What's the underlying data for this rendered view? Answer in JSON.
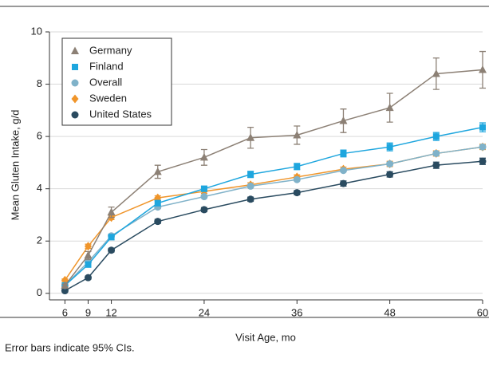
{
  "chart_data": {
    "type": "line",
    "x_label": "Visit Age, mo",
    "y_label": "Mean Gluten Intake, g/d",
    "note": "Error bars indicate 95% CIs.",
    "x": [
      6,
      9,
      12,
      18,
      24,
      30,
      36,
      42,
      48,
      54,
      60
    ],
    "xlim": [
      4,
      60
    ],
    "xticks": [
      6,
      9,
      12,
      24,
      36,
      48,
      60
    ],
    "ylim": [
      -0.25,
      10
    ],
    "yticks": [
      0,
      2,
      4,
      6,
      8,
      10
    ],
    "grid": true,
    "legend": "upper left",
    "series": [
      {
        "name": "Germany",
        "color": "#8c8075",
        "marker": "triangle",
        "values": [
          0.3,
          1.45,
          3.1,
          4.65,
          5.2,
          5.95,
          6.05,
          6.6,
          7.1,
          8.4,
          8.55
        ],
        "errors": [
          0.05,
          0.15,
          0.2,
          0.25,
          0.3,
          0.4,
          0.35,
          0.45,
          0.55,
          0.6,
          0.7
        ]
      },
      {
        "name": "Finland",
        "color": "#1ea6de",
        "marker": "square",
        "values": [
          0.3,
          1.1,
          2.15,
          3.45,
          4.0,
          4.55,
          4.85,
          5.35,
          5.6,
          6.0,
          6.35
        ],
        "errors": [
          0.05,
          0.1,
          0.1,
          0.1,
          0.1,
          0.12,
          0.12,
          0.13,
          0.15,
          0.15,
          0.17
        ]
      },
      {
        "name": "Overall",
        "color": "#80b2c9",
        "marker": "circle",
        "values": [
          0.3,
          1.2,
          2.2,
          3.3,
          3.7,
          4.1,
          4.35,
          4.7,
          4.95,
          5.35,
          5.6
        ],
        "errors": [
          0.05,
          0.05,
          0.05,
          0.05,
          0.05,
          0.05,
          0.05,
          0.05,
          0.06,
          0.07,
          0.07
        ]
      },
      {
        "name": "Sweden",
        "color": "#f0952a",
        "marker": "diamond",
        "values": [
          0.5,
          1.8,
          2.9,
          3.65,
          3.9,
          4.15,
          4.45,
          4.75,
          4.95,
          5.35,
          5.6
        ],
        "errors": [
          0.05,
          0.08,
          0.08,
          0.08,
          0.08,
          0.08,
          0.08,
          0.08,
          0.1,
          0.1,
          0.1
        ]
      },
      {
        "name": "United States",
        "color": "#2a4b60",
        "marker": "circle",
        "values": [
          0.1,
          0.6,
          1.65,
          2.75,
          3.2,
          3.6,
          3.85,
          4.2,
          4.55,
          4.9,
          5.05
        ],
        "errors": [
          0.05,
          0.06,
          0.07,
          0.08,
          0.08,
          0.08,
          0.08,
          0.1,
          0.1,
          0.12,
          0.12
        ]
      }
    ]
  }
}
